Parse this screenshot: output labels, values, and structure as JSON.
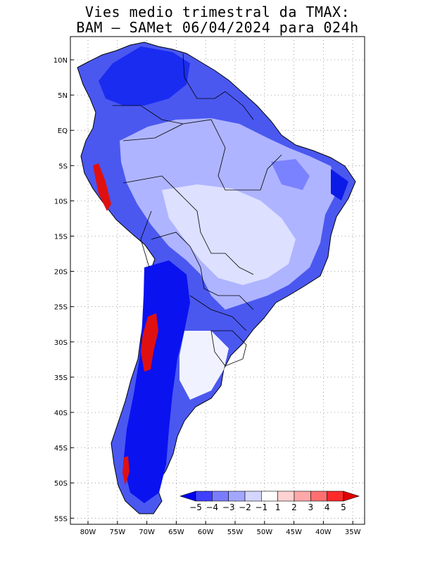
{
  "title_line1": "Vies medio trimestral da TMAX:",
  "title_line2": "BAM – SAMet 06/04/2024  para 024h",
  "map": {
    "lat_ticks": [
      "10N",
      "5N",
      "EQ",
      "5S",
      "10S",
      "15S",
      "20S",
      "25S",
      "30S",
      "35S",
      "40S",
      "45S",
      "50S",
      "55S"
    ],
    "lon_ticks": [
      "80W",
      "75W",
      "70W",
      "65W",
      "60W",
      "55W",
      "50W",
      "45W",
      "40W",
      "35W"
    ],
    "gridlines": "dotted"
  },
  "colorbar": {
    "labels": [
      "−5",
      "−4",
      "−3",
      "−2",
      "−1",
      "1",
      "2",
      "3",
      "4",
      "5"
    ],
    "colors": [
      "#0000ee",
      "#3f3fff",
      "#7a7cff",
      "#a3a6ff",
      "#d4d6ff",
      "#ffffff",
      "#ffd2d2",
      "#ffa8a8",
      "#ff6f6f",
      "#ff2a2a",
      "#e00000"
    ]
  }
}
